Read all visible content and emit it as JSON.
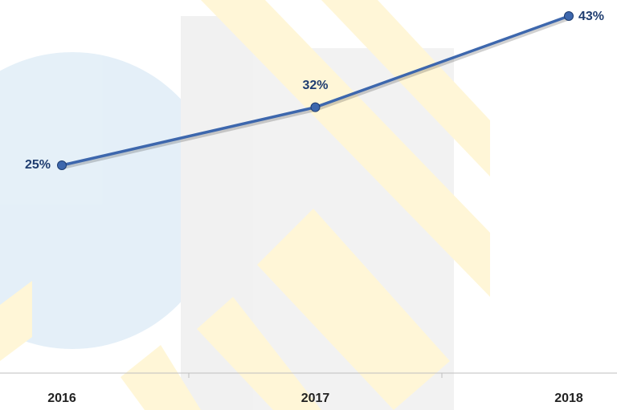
{
  "chart_data": {
    "type": "line",
    "categories": [
      "2016",
      "2017",
      "2018"
    ],
    "values": [
      25,
      32,
      43
    ],
    "value_labels": [
      "25%",
      "32%",
      "43%"
    ],
    "color": "#3d67ad",
    "grid": false
  }
}
